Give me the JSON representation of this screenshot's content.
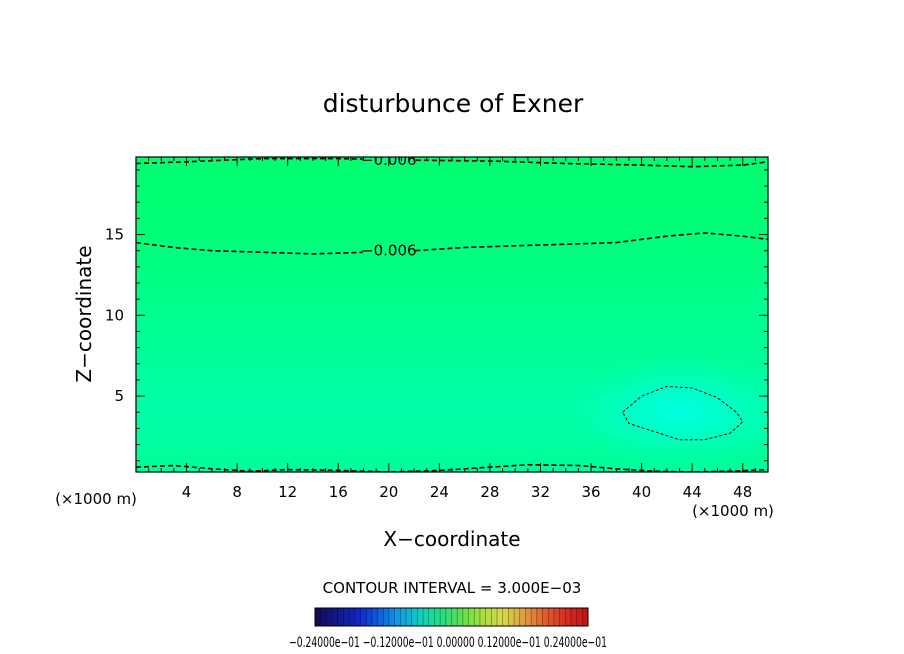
{
  "chart_data": {
    "type": "heatmap",
    "title": "disturbunce of Exner",
    "xlabel": "X−coordinate",
    "ylabel": "Z−coordinate",
    "x_unit_left": "(×1000 m)",
    "x_unit_right": "(×1000 m)",
    "xlim": [
      0,
      50
    ],
    "ylim": [
      0.3,
      19.8
    ],
    "x_ticks": [
      4,
      8,
      12,
      16,
      20,
      24,
      28,
      32,
      36,
      40,
      44,
      48
    ],
    "x_tick_labels": [
      "4",
      "8",
      "12",
      "16",
      "20",
      "24",
      "28",
      "32",
      "36",
      "40",
      "44",
      "48"
    ],
    "y_ticks": [
      5,
      10,
      15
    ],
    "y_tick_labels": [
      "5",
      "10",
      "15"
    ],
    "colors": {
      "field_top": "#00ff7a",
      "field_mid": "#00ff95",
      "field_low": "#00ffb0",
      "field_anomaly": "#00ffd8",
      "contour": "#000000"
    },
    "contours": [
      {
        "level": -0.006,
        "label": "−0.006",
        "label_at": [
          20,
          19.6
        ],
        "points": [
          [
            0,
            19.4
          ],
          [
            4,
            19.5
          ],
          [
            10,
            19.7
          ],
          [
            16,
            19.7
          ],
          [
            22,
            19.6
          ],
          [
            28,
            19.55
          ],
          [
            34,
            19.4
          ],
          [
            40,
            19.3
          ],
          [
            44,
            19.2
          ],
          [
            48,
            19.3
          ],
          [
            50,
            19.5
          ]
        ]
      },
      {
        "level": -0.006,
        "label": "−0.006",
        "label_at": [
          20,
          14.0
        ],
        "points": [
          [
            0,
            14.5
          ],
          [
            3,
            14.2
          ],
          [
            6,
            14.0
          ],
          [
            10,
            13.9
          ],
          [
            14,
            13.8
          ],
          [
            18,
            13.9
          ],
          [
            22,
            14.0
          ],
          [
            26,
            14.2
          ],
          [
            30,
            14.3
          ],
          [
            34,
            14.4
          ],
          [
            38,
            14.5
          ],
          [
            42,
            14.9
          ],
          [
            45,
            15.1
          ],
          [
            48,
            14.9
          ],
          [
            50,
            14.7
          ]
        ]
      },
      {
        "level": -0.006,
        "label": "",
        "points": [
          [
            0,
            0.6
          ],
          [
            3,
            0.7
          ],
          [
            6,
            0.5
          ],
          [
            9,
            0.35
          ],
          [
            12,
            0.45
          ],
          [
            16,
            0.4
          ],
          [
            20,
            0.3
          ],
          [
            24,
            0.4
          ],
          [
            28,
            0.6
          ],
          [
            31,
            0.75
          ],
          [
            35,
            0.7
          ],
          [
            38,
            0.5
          ],
          [
            41,
            0.35
          ],
          [
            44,
            0.3
          ],
          [
            47,
            0.35
          ],
          [
            50,
            0.45
          ]
        ]
      },
      {
        "level": -0.003,
        "label": "",
        "closed": true,
        "points": [
          [
            38.5,
            4.0
          ],
          [
            40,
            5.0
          ],
          [
            42,
            5.6
          ],
          [
            44,
            5.5
          ],
          [
            46,
            4.9
          ],
          [
            47.5,
            4.0
          ],
          [
            48,
            3.4
          ],
          [
            47,
            2.7
          ],
          [
            45,
            2.3
          ],
          [
            43,
            2.3
          ],
          [
            41,
            2.8
          ],
          [
            39,
            3.3
          ],
          [
            38.5,
            4.0
          ]
        ]
      }
    ],
    "contour_interval_text": "CONTOUR INTERVAL = 3.000E−03",
    "colorbar": {
      "colors": [
        "#1a0a55",
        "#101a90",
        "#1028c8",
        "#1060e0",
        "#10a0e0",
        "#10d0c0",
        "#20e080",
        "#60e050",
        "#a8e040",
        "#d8d848",
        "#e0a040",
        "#e06030",
        "#d83020",
        "#c01818"
      ],
      "tick_labels_text": "−0.24000e−01 −0.12000e−01 0.00000 0.12000e−01 0.24000e−01"
    }
  }
}
